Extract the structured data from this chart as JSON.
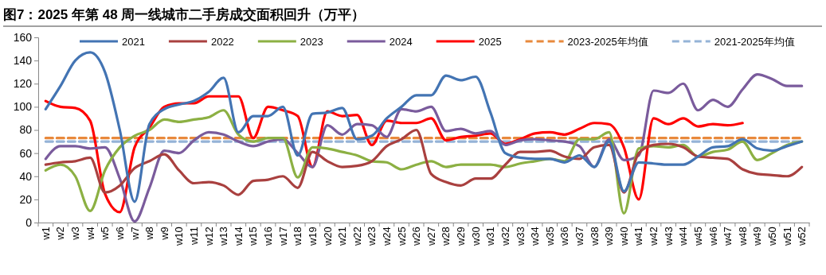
{
  "chart_data": {
    "type": "line",
    "title": "图7：2025 年第 48 周一线城市二手房成交面积回升（万平）",
    "categories": [
      "w1",
      "w2",
      "w3",
      "w4",
      "w5",
      "w6",
      "w7",
      "w8",
      "w9",
      "w10",
      "w11",
      "w12",
      "w13",
      "w14",
      "w15",
      "w16",
      "w17",
      "w18",
      "w19",
      "w20",
      "w21",
      "w22",
      "w23",
      "w24",
      "w25",
      "w26",
      "w27",
      "w28",
      "w29",
      "w30",
      "w31",
      "w32",
      "w33",
      "w34",
      "w35",
      "w36",
      "w37",
      "w38",
      "w39",
      "w40",
      "w41",
      "w42",
      "w43",
      "w44",
      "w45",
      "w46",
      "w47",
      "w48",
      "w49",
      "w50",
      "w51",
      "w52"
    ],
    "series": [
      {
        "name": "2021",
        "color": "#4374b3",
        "values": [
          98,
          118,
          140,
          147,
          130,
          80,
          18,
          85,
          98,
          102,
          105,
          113,
          125,
          78,
          92,
          92,
          100,
          58,
          94,
          95,
          99,
          72,
          75,
          90,
          100,
          110,
          110,
          127,
          123,
          126,
          95,
          60,
          56,
          55,
          55,
          52,
          58,
          48,
          70,
          27,
          52,
          51,
          50,
          50,
          57,
          65,
          66,
          72,
          64,
          62,
          66,
          70
        ]
      },
      {
        "name": "2022",
        "color": "#a9403f",
        "values": [
          50,
          52,
          53,
          56,
          26,
          32,
          47,
          53,
          59,
          45,
          34,
          35,
          32,
          24,
          36,
          37,
          40,
          30,
          61,
          53,
          48,
          49,
          53,
          66,
          72,
          80,
          42,
          35,
          32,
          38,
          38,
          50,
          61,
          61,
          62,
          57,
          55,
          65,
          67,
          26,
          60,
          67,
          68,
          65,
          57,
          56,
          55,
          46,
          42,
          41,
          40,
          48
        ]
      },
      {
        "name": "2023",
        "color": "#8cb043",
        "values": [
          45,
          50,
          40,
          10,
          45,
          65,
          75,
          80,
          89,
          87,
          89,
          91,
          97,
          76,
          70,
          73,
          73,
          39,
          65,
          64,
          61,
          58,
          53,
          52,
          46,
          50,
          53,
          48,
          50,
          50,
          50,
          48,
          51,
          53,
          55,
          53,
          72,
          72,
          78,
          8,
          64,
          66,
          65,
          67,
          57,
          61,
          63,
          70,
          54,
          60,
          67,
          70
        ]
      },
      {
        "name": "2024",
        "color": "#7a5b9c",
        "values": [
          55,
          66,
          66,
          64,
          65,
          38,
          1,
          30,
          62,
          60,
          71,
          78,
          76,
          70,
          66,
          70,
          72,
          60,
          48,
          84,
          76,
          85,
          84,
          74,
          98,
          96,
          100,
          79,
          81,
          77,
          79,
          67,
          71,
          72,
          71,
          70,
          66,
          48,
          72,
          54,
          58,
          114,
          112,
          120,
          97,
          106,
          100,
          115,
          128,
          124,
          118,
          118
        ]
      },
      {
        "name": "2025",
        "color": "#ff0000",
        "values": [
          105,
          100,
          99,
          88,
          25,
          9,
          65,
          82,
          100,
          103,
          103,
          109,
          109,
          109,
          73,
          100,
          97,
          92,
          48,
          96,
          92,
          93,
          67,
          88,
          86,
          86,
          90,
          71,
          74,
          75,
          77,
          68,
          72,
          77,
          78,
          76,
          81,
          86,
          85,
          65,
          20,
          90,
          85,
          90,
          83,
          85,
          84,
          86,
          null,
          null,
          null,
          null
        ]
      },
      {
        "name": "2023-2025年均值",
        "color": "#e8893c",
        "line_style": "dashed",
        "values": [
          73,
          73,
          73,
          73,
          73,
          73,
          73,
          73,
          73,
          73,
          73,
          73,
          73,
          73,
          73,
          73,
          73,
          73,
          73,
          73,
          73,
          73,
          73,
          73,
          73,
          73,
          73,
          73,
          73,
          73,
          73,
          73,
          73,
          73,
          73,
          73,
          73,
          73,
          73,
          73,
          73,
          73,
          73,
          73,
          73,
          73,
          73,
          73,
          73,
          73,
          73,
          73
        ]
      },
      {
        "name": "2021-2025年均值",
        "color": "#95b3d7",
        "line_style": "dashed",
        "values": [
          70,
          70,
          70,
          70,
          70,
          70,
          70,
          70,
          70,
          70,
          70,
          70,
          70,
          70,
          70,
          70,
          70,
          70,
          70,
          70,
          70,
          70,
          70,
          70,
          70,
          70,
          70,
          70,
          70,
          70,
          70,
          70,
          70,
          70,
          70,
          70,
          70,
          70,
          70,
          70,
          70,
          70,
          70,
          70,
          70,
          70,
          70,
          70,
          70,
          70,
          70,
          70
        ]
      }
    ],
    "ylim": [
      0,
      160
    ],
    "yticks": [
      0,
      20,
      40,
      60,
      80,
      100,
      120,
      140,
      160
    ],
    "legend": "top"
  }
}
